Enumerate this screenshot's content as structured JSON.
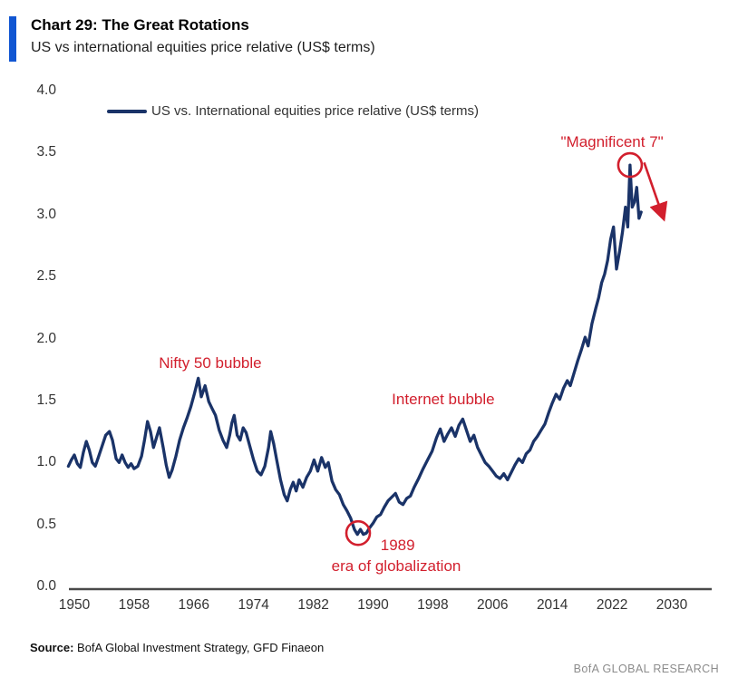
{
  "header": {
    "chart_label": "Chart 29: The Great Rotations",
    "subtitle": "US vs international equities price relative (US$ terms)"
  },
  "footer": {
    "source_label": "Source:",
    "source_text": " BofA Global Investment Strategy, GFD Finaeon",
    "brand": "BofA GLOBAL RESEARCH"
  },
  "colors": {
    "line": "#1a3368",
    "accent_red": "#d21f2d",
    "brand_blue": "#1156d2",
    "axis": "#4a4a4a",
    "tick_text": "#333333",
    "muted": "#8c8c8c"
  },
  "chart_data": {
    "type": "line",
    "title": "Chart 29: The Great Rotations",
    "subtitle": "US vs international equities price relative (US$ terms)",
    "legend": "US vs. International equities price relative (US$ terms)",
    "legend_position": "top-left",
    "grid": false,
    "xlim": [
      1950,
      2030
    ],
    "ylim": [
      0.0,
      4.0
    ],
    "y_ticks": [
      "0.0",
      "0.5",
      "1.0",
      "1.5",
      "2.0",
      "2.5",
      "3.0",
      "3.5",
      "4.0"
    ],
    "x_ticks": [
      "1950",
      "1958",
      "1966",
      "1974",
      "1982",
      "1990",
      "1998",
      "2006",
      "2014",
      "2022",
      "2030"
    ],
    "xlabel": "",
    "ylabel": "",
    "series": [
      {
        "name": "US vs. International equities price relative (US$ terms)",
        "points": [
          [
            1949.2,
            0.97
          ],
          [
            1949.6,
            1.02
          ],
          [
            1950.0,
            1.06
          ],
          [
            1950.4,
            0.99
          ],
          [
            1950.8,
            0.96
          ],
          [
            1951.2,
            1.08
          ],
          [
            1951.6,
            1.17
          ],
          [
            1952.0,
            1.1
          ],
          [
            1952.4,
            1.0
          ],
          [
            1952.8,
            0.97
          ],
          [
            1953.2,
            1.04
          ],
          [
            1953.7,
            1.13
          ],
          [
            1954.2,
            1.22
          ],
          [
            1954.7,
            1.25
          ],
          [
            1955.1,
            1.18
          ],
          [
            1955.6,
            1.03
          ],
          [
            1956.0,
            1.0
          ],
          [
            1956.4,
            1.06
          ],
          [
            1956.8,
            1.0
          ],
          [
            1957.2,
            0.96
          ],
          [
            1957.6,
            0.99
          ],
          [
            1958.0,
            0.95
          ],
          [
            1958.5,
            0.97
          ],
          [
            1959.0,
            1.05
          ],
          [
            1959.4,
            1.18
          ],
          [
            1959.8,
            1.33
          ],
          [
            1960.2,
            1.25
          ],
          [
            1960.6,
            1.12
          ],
          [
            1961.0,
            1.2
          ],
          [
            1961.4,
            1.28
          ],
          [
            1961.9,
            1.12
          ],
          [
            1962.3,
            0.98
          ],
          [
            1962.7,
            0.88
          ],
          [
            1963.1,
            0.94
          ],
          [
            1963.6,
            1.05
          ],
          [
            1964.1,
            1.18
          ],
          [
            1964.6,
            1.28
          ],
          [
            1965.1,
            1.36
          ],
          [
            1965.6,
            1.45
          ],
          [
            1966.1,
            1.56
          ],
          [
            1966.6,
            1.68
          ],
          [
            1967.0,
            1.53
          ],
          [
            1967.5,
            1.62
          ],
          [
            1968.0,
            1.49
          ],
          [
            1968.4,
            1.44
          ],
          [
            1968.9,
            1.38
          ],
          [
            1969.4,
            1.26
          ],
          [
            1969.9,
            1.18
          ],
          [
            1970.4,
            1.12
          ],
          [
            1970.8,
            1.22
          ],
          [
            1971.1,
            1.32
          ],
          [
            1971.4,
            1.38
          ],
          [
            1971.8,
            1.22
          ],
          [
            1972.2,
            1.18
          ],
          [
            1972.6,
            1.28
          ],
          [
            1973.0,
            1.24
          ],
          [
            1973.5,
            1.13
          ],
          [
            1974.0,
            1.02
          ],
          [
            1974.5,
            0.93
          ],
          [
            1975.0,
            0.9
          ],
          [
            1975.5,
            0.97
          ],
          [
            1976.0,
            1.12
          ],
          [
            1976.3,
            1.25
          ],
          [
            1976.7,
            1.15
          ],
          [
            1977.1,
            1.02
          ],
          [
            1977.6,
            0.86
          ],
          [
            1978.1,
            0.74
          ],
          [
            1978.5,
            0.69
          ],
          [
            1978.9,
            0.78
          ],
          [
            1979.3,
            0.84
          ],
          [
            1979.7,
            0.77
          ],
          [
            1980.1,
            0.86
          ],
          [
            1980.6,
            0.8
          ],
          [
            1981.1,
            0.88
          ],
          [
            1981.6,
            0.93
          ],
          [
            1982.1,
            1.02
          ],
          [
            1982.6,
            0.93
          ],
          [
            1983.1,
            1.04
          ],
          [
            1983.6,
            0.96
          ],
          [
            1984.0,
            1.0
          ],
          [
            1984.5,
            0.85
          ],
          [
            1985.0,
            0.78
          ],
          [
            1985.5,
            0.74
          ],
          [
            1986.0,
            0.66
          ],
          [
            1986.5,
            0.61
          ],
          [
            1987.0,
            0.55
          ],
          [
            1987.5,
            0.46
          ],
          [
            1987.9,
            0.42
          ],
          [
            1988.3,
            0.46
          ],
          [
            1988.7,
            0.42
          ],
          [
            1989.1,
            0.43
          ],
          [
            1989.5,
            0.47
          ],
          [
            1990.0,
            0.51
          ],
          [
            1990.5,
            0.56
          ],
          [
            1991.0,
            0.58
          ],
          [
            1991.5,
            0.64
          ],
          [
            1992.0,
            0.69
          ],
          [
            1992.5,
            0.72
          ],
          [
            1993.0,
            0.75
          ],
          [
            1993.5,
            0.68
          ],
          [
            1994.0,
            0.66
          ],
          [
            1994.5,
            0.71
          ],
          [
            1995.0,
            0.73
          ],
          [
            1995.5,
            0.8
          ],
          [
            1996.1,
            0.87
          ],
          [
            1996.7,
            0.95
          ],
          [
            1997.3,
            1.02
          ],
          [
            1997.9,
            1.09
          ],
          [
            1998.5,
            1.2
          ],
          [
            1999.0,
            1.27
          ],
          [
            1999.5,
            1.17
          ],
          [
            2000.0,
            1.23
          ],
          [
            2000.5,
            1.28
          ],
          [
            2001.0,
            1.21
          ],
          [
            2001.5,
            1.3
          ],
          [
            2002.0,
            1.35
          ],
          [
            2002.5,
            1.26
          ],
          [
            2003.0,
            1.17
          ],
          [
            2003.5,
            1.22
          ],
          [
            2004.0,
            1.12
          ],
          [
            2004.5,
            1.06
          ],
          [
            2005.0,
            1.0
          ],
          [
            2005.5,
            0.97
          ],
          [
            2006.0,
            0.93
          ],
          [
            2006.5,
            0.89
          ],
          [
            2007.0,
            0.87
          ],
          [
            2007.5,
            0.91
          ],
          [
            2008.0,
            0.86
          ],
          [
            2008.5,
            0.92
          ],
          [
            2009.0,
            0.98
          ],
          [
            2009.5,
            1.03
          ],
          [
            2010.0,
            1.0
          ],
          [
            2010.5,
            1.07
          ],
          [
            2011.0,
            1.1
          ],
          [
            2011.5,
            1.17
          ],
          [
            2012.0,
            1.21
          ],
          [
            2012.5,
            1.26
          ],
          [
            2013.0,
            1.31
          ],
          [
            2013.5,
            1.4
          ],
          [
            2014.0,
            1.48
          ],
          [
            2014.5,
            1.55
          ],
          [
            2015.0,
            1.51
          ],
          [
            2015.5,
            1.6
          ],
          [
            2016.0,
            1.66
          ],
          [
            2016.4,
            1.62
          ],
          [
            2016.9,
            1.72
          ],
          [
            2017.4,
            1.82
          ],
          [
            2017.9,
            1.91
          ],
          [
            2018.4,
            2.01
          ],
          [
            2018.8,
            1.94
          ],
          [
            2019.3,
            2.12
          ],
          [
            2019.8,
            2.24
          ],
          [
            2020.2,
            2.33
          ],
          [
            2020.6,
            2.45
          ],
          [
            2021.0,
            2.52
          ],
          [
            2021.4,
            2.63
          ],
          [
            2021.8,
            2.8
          ],
          [
            2022.2,
            2.9
          ],
          [
            2022.6,
            2.56
          ],
          [
            2023.0,
            2.7
          ],
          [
            2023.4,
            2.86
          ],
          [
            2023.8,
            3.06
          ],
          [
            2024.1,
            2.9
          ],
          [
            2024.4,
            3.4
          ],
          [
            2024.7,
            3.06
          ],
          [
            2025.0,
            3.1
          ],
          [
            2025.3,
            3.22
          ],
          [
            2025.6,
            2.97
          ],
          [
            2025.9,
            3.02
          ]
        ]
      }
    ],
    "annotations": [
      {
        "text": "Nifty 50 bubble",
        "year": 1968.2,
        "value": 1.8
      },
      {
        "text": "Internet bubble",
        "year": 1999.4,
        "value": 1.51
      },
      {
        "text": "\"Magnificent 7\"",
        "year": 2022.0,
        "value": 3.58
      },
      {
        "text": "1989",
        "year": 1993.3,
        "value": 0.33
      },
      {
        "text": "era of globalization",
        "year": 1993.1,
        "value": 0.16
      }
    ],
    "highlight_circles": [
      {
        "label": "magnificent-7-peak",
        "year": 2024.4,
        "value": 3.4,
        "r": 13
      },
      {
        "label": "1989-low",
        "year": 1988.0,
        "value": 0.43,
        "r": 13
      }
    ],
    "trend_arrow": {
      "x1_year": 2026.3,
      "y1_value": 3.42,
      "x2_year": 2028.9,
      "y2_value": 2.97
    }
  }
}
